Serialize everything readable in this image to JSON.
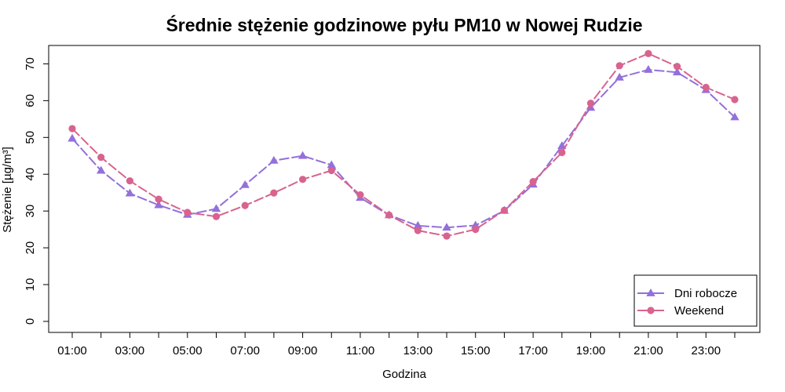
{
  "chart_data": {
    "type": "line",
    "title": "Średnie stężenie godzinowe pyłu PM10 w Nowej Rudzie",
    "xlabel": "Godzina",
    "ylabel": "Stężenie [µg/m³]",
    "x": [
      "01:00",
      "02:00",
      "03:00",
      "04:00",
      "05:00",
      "06:00",
      "07:00",
      "08:00",
      "09:00",
      "10:00",
      "11:00",
      "12:00",
      "13:00",
      "14:00",
      "15:00",
      "16:00",
      "17:00",
      "18:00",
      "19:00",
      "20:00",
      "21:00",
      "22:00",
      "23:00",
      "24:00"
    ],
    "x_tick_labels": [
      "01:00",
      "03:00",
      "05:00",
      "07:00",
      "09:00",
      "11:00",
      "13:00",
      "15:00",
      "17:00",
      "19:00",
      "21:00",
      "23:00"
    ],
    "y_ticks": [
      0,
      10,
      20,
      30,
      40,
      50,
      60,
      70
    ],
    "ylim": [
      -3,
      75
    ],
    "grid": false,
    "legend_position": "bottom-right",
    "series": [
      {
        "name": "Dni robocze",
        "color": "#9370DB",
        "marker": "triangle",
        "values": [
          49.7,
          41.0,
          34.8,
          31.6,
          29.0,
          30.6,
          37.1,
          43.7,
          45.0,
          42.5,
          33.6,
          28.9,
          26.0,
          25.5,
          26.1,
          30.1,
          37.2,
          47.7,
          58.1,
          66.3,
          68.4,
          67.7,
          62.9,
          55.5
        ]
      },
      {
        "name": "Weekend",
        "color": "#D8638E",
        "marker": "circle",
        "values": [
          52.4,
          44.6,
          38.2,
          33.2,
          29.6,
          28.5,
          31.5,
          34.9,
          38.6,
          41.0,
          34.4,
          28.9,
          24.7,
          23.2,
          25.0,
          30.2,
          38.0,
          45.9,
          59.3,
          69.5,
          72.8,
          69.3,
          63.6,
          60.3
        ]
      }
    ]
  }
}
